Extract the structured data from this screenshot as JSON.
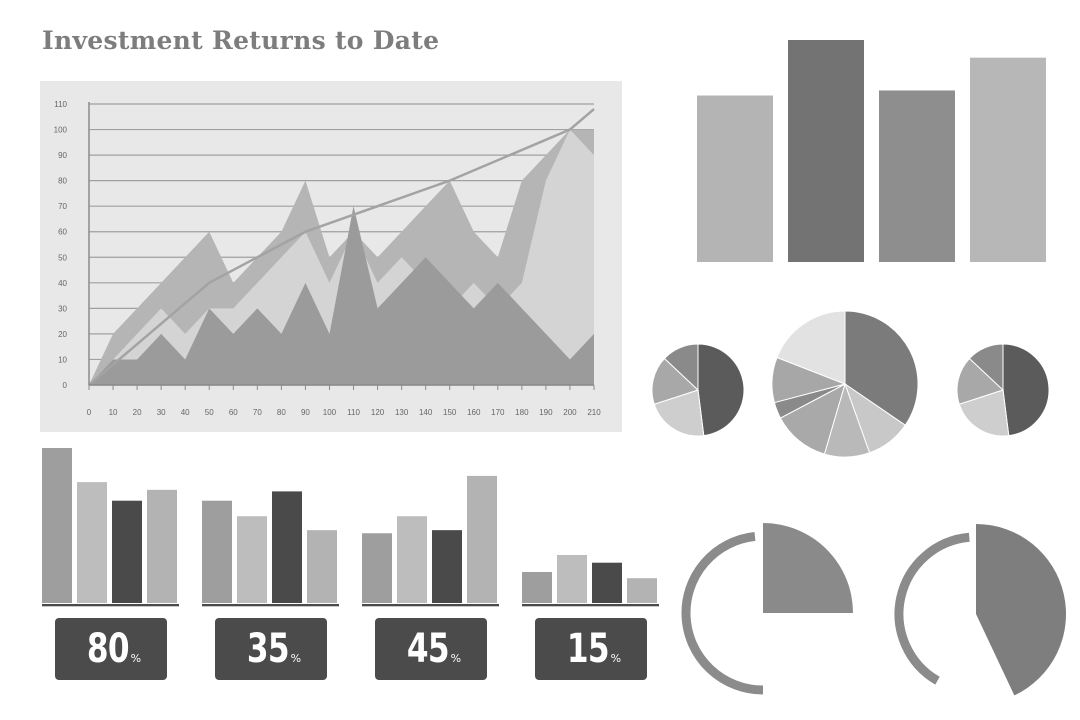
{
  "title": "Investment Returns to Date",
  "colors": {
    "panel_bg": "#e8e8e8",
    "grid": "#a0a0a0",
    "axis": "#8a8a8a",
    "back_area": "#b5b5b5",
    "mid_area": "#d4d4d4",
    "front_area": "#9b9b9b",
    "trend_line": "#a3a3a3"
  },
  "chart_data": [
    {
      "type": "area",
      "x": [
        0,
        10,
        20,
        30,
        40,
        50,
        60,
        70,
        80,
        90,
        100,
        110,
        120,
        130,
        140,
        150,
        160,
        170,
        180,
        190,
        200,
        210
      ],
      "xticks": [
        "0",
        "10",
        "20",
        "30",
        "40",
        "50",
        "60",
        "70",
        "80",
        "90",
        "100",
        "110",
        "120",
        "130",
        "140",
        "150",
        "160",
        "170",
        "180",
        "190",
        "200",
        "210"
      ],
      "yticks": [
        "0",
        "10",
        "20",
        "30",
        "40",
        "50",
        "60",
        "70",
        "80",
        "90",
        "100",
        "110"
      ],
      "xlim": [
        0,
        210
      ],
      "ylim": [
        0,
        110
      ],
      "grid": true,
      "series": [
        {
          "values": [
            0,
            20,
            30,
            40,
            50,
            60,
            40,
            50,
            60,
            80,
            50,
            60,
            50,
            60,
            70,
            80,
            60,
            50,
            80,
            90,
            100,
            100
          ]
        },
        {
          "values": [
            0,
            10,
            20,
            30,
            20,
            30,
            30,
            40,
            50,
            60,
            40,
            60,
            40,
            50,
            40,
            30,
            40,
            30,
            40,
            80,
            100,
            90
          ]
        },
        {
          "values": [
            0,
            10,
            10,
            20,
            10,
            30,
            20,
            30,
            20,
            40,
            20,
            70,
            30,
            40,
            50,
            40,
            30,
            40,
            30,
            20,
            10,
            20
          ]
        },
        {
          "type": "line",
          "x": [
            0,
            50,
            90,
            150,
            200,
            210
          ],
          "values": [
            0,
            40,
            60,
            80,
            100,
            108
          ]
        }
      ]
    },
    {
      "type": "bar",
      "values": [
        66,
        88,
        68,
        81
      ],
      "colors": [
        "#b4b4b4",
        "#737373",
        "#8e8e8e",
        "#b7b7b7"
      ]
    },
    {
      "type": "pie",
      "values": [
        48,
        22,
        17,
        13
      ],
      "colors": [
        "#5b5b5b",
        "#cecece",
        "#a8a8a8",
        "#8a8a8a"
      ]
    },
    {
      "type": "pie",
      "values": [
        38,
        11,
        11,
        14,
        4,
        11,
        21
      ],
      "colors": [
        "#7b7b7b",
        "#c8c8c8",
        "#b9b9b9",
        "#a9a9a9",
        "#8a8a8a",
        "#a7a7a7",
        "#e2e2e2"
      ]
    },
    {
      "type": "pie",
      "values": [
        48,
        22,
        17,
        13
      ],
      "colors": [
        "#5b5b5b",
        "#cecece",
        "#a8a8a8",
        "#8a8a8a"
      ]
    },
    {
      "type": "bar",
      "values": [
        100,
        78,
        66,
        73
      ],
      "colors": [
        "#9e9e9e",
        "#bdbdbd",
        "#4a4a4a",
        "#b3b3b3"
      ]
    },
    {
      "type": "bar",
      "values": [
        66,
        56,
        72,
        47
      ],
      "colors": [
        "#9e9e9e",
        "#bdbdbd",
        "#4a4a4a",
        "#b3b3b3"
      ]
    },
    {
      "type": "bar",
      "values": [
        45,
        56,
        47,
        82
      ],
      "colors": [
        "#9e9e9e",
        "#bdbdbd",
        "#4a4a4a",
        "#b3b3b3"
      ]
    },
    {
      "type": "bar",
      "values": [
        20,
        31,
        26,
        16
      ],
      "colors": [
        "#9e9e9e",
        "#bdbdbd",
        "#4a4a4a",
        "#b3b3b3"
      ]
    },
    {
      "type": "pie",
      "values": [
        25,
        75
      ],
      "colors": [
        "#8a8a8a",
        "#ffffff"
      ]
    },
    {
      "type": "pie",
      "values": [
        43,
        57
      ],
      "colors": [
        "#7e7e7e",
        "#ffffff"
      ]
    }
  ],
  "stats": [
    {
      "value": "80",
      "unit": "%"
    },
    {
      "value": "35",
      "unit": "%"
    },
    {
      "value": "45",
      "unit": "%"
    },
    {
      "value": "15",
      "unit": "%"
    }
  ]
}
